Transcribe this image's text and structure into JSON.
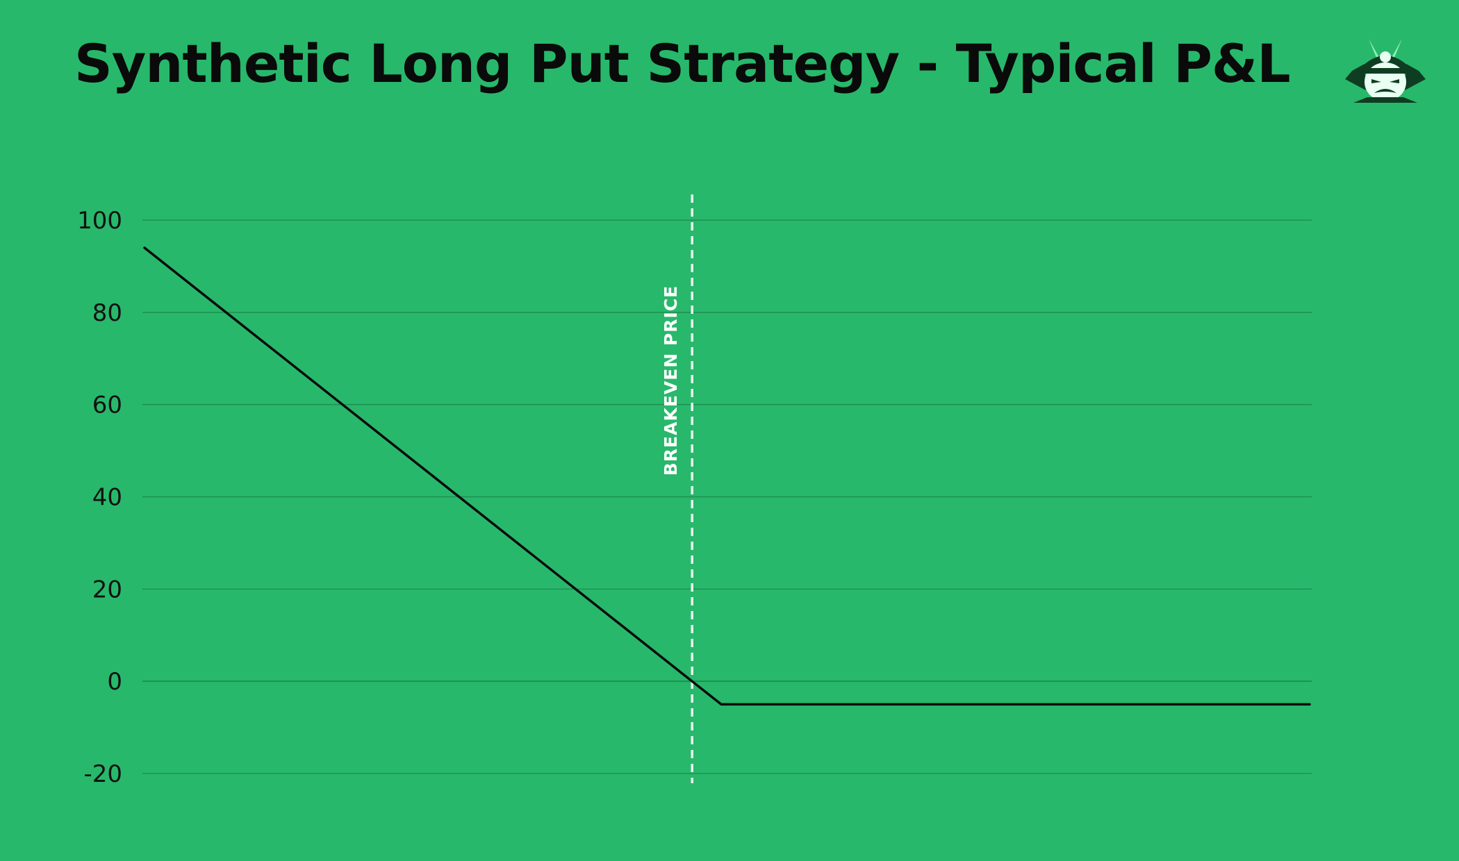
{
  "title": "Synthetic Long Put Strategy - Typical P&L",
  "colors": {
    "background": "#28b86b",
    "grid": "#1f8f52",
    "line": "#0b0b0b",
    "breakeven": "#e6f5ec",
    "title": "#0a0a0a"
  },
  "logo": {
    "icon": "samurai-mascot-icon"
  },
  "chart_data": {
    "type": "line",
    "title": "Synthetic Long Put Strategy - Typical P&L",
    "xlabel": "",
    "ylabel": "",
    "ylim": [
      -20,
      100
    ],
    "yticks": [
      -20,
      0,
      20,
      40,
      60,
      80,
      100
    ],
    "ytick_labels": [
      "-20",
      "0",
      "20",
      "40",
      "60",
      "80",
      "100"
    ],
    "xlim": [
      0,
      100
    ],
    "grid": true,
    "series": [
      {
        "x": [
          0,
          47,
          49.5,
          100
        ],
        "y": [
          94,
          0,
          -5,
          -5
        ]
      }
    ],
    "annotations": [
      {
        "type": "vertical-line",
        "style": "dashed",
        "x": 47,
        "label": "BREAKEVEN PRICE"
      }
    ]
  }
}
